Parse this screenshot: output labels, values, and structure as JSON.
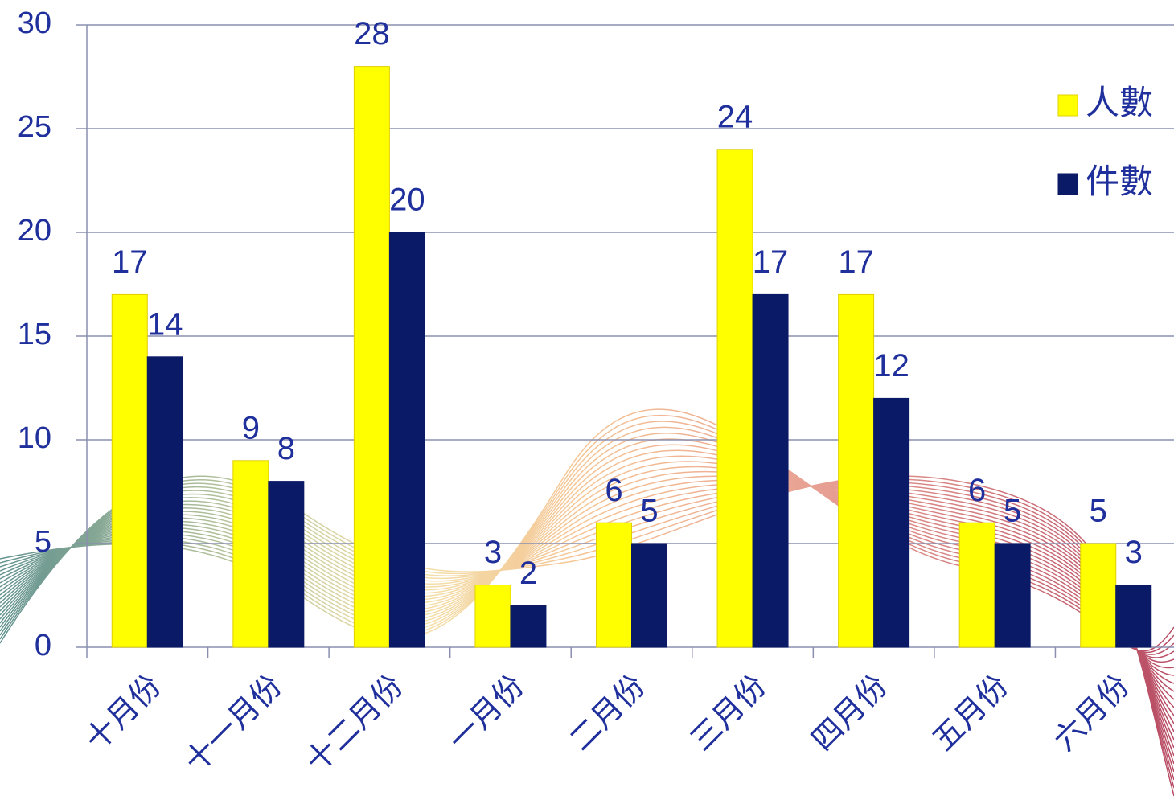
{
  "chart_data": {
    "type": "bar",
    "categories": [
      "十月份",
      "十一月份",
      "十二月份",
      "一月份",
      "二月份",
      "三月份",
      "四月份",
      "五月份",
      "六月份"
    ],
    "series": [
      {
        "name": "人數",
        "color": "#ffff00",
        "values": [
          17,
          9,
          28,
          3,
          6,
          24,
          17,
          6,
          5
        ]
      },
      {
        "name": "件數",
        "color": "#0b1a66",
        "values": [
          14,
          8,
          20,
          2,
          5,
          17,
          12,
          5,
          3
        ]
      }
    ],
    "ylim": [
      0,
      30
    ],
    "yticks": [
      0,
      5,
      10,
      15,
      20,
      25,
      30
    ],
    "grid": true,
    "legend": "top-right"
  }
}
